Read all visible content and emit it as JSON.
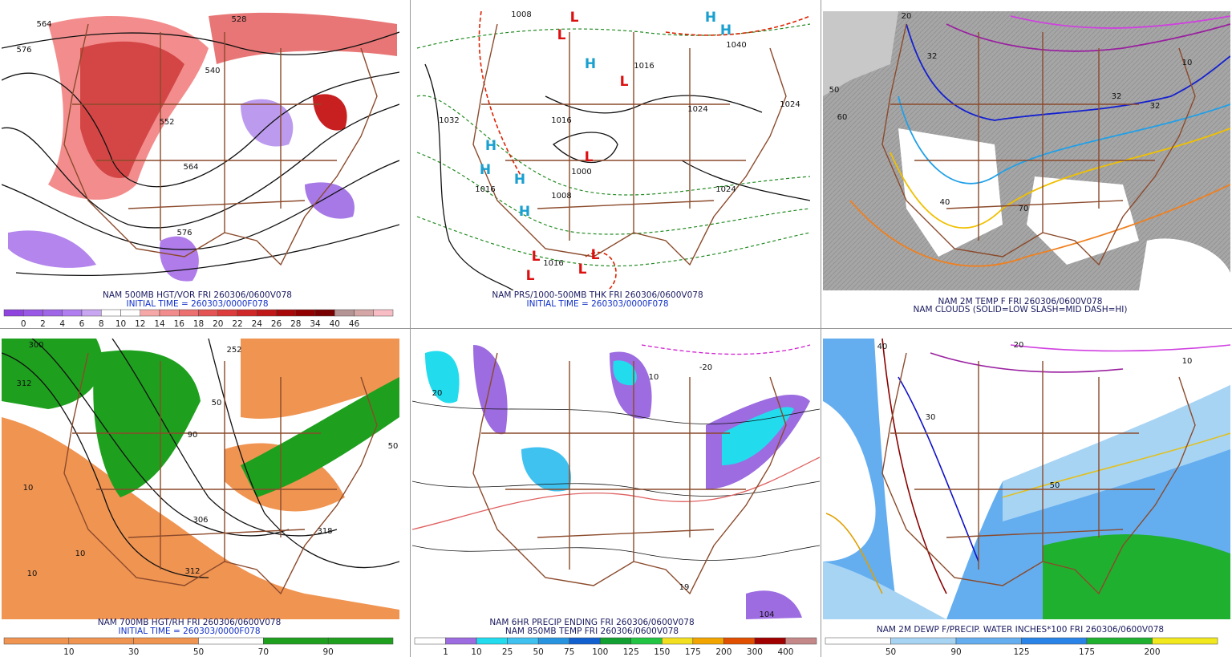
{
  "panels": [
    {
      "caption": [
        "NAM 500MB HGT/VOR FRI 260306/0600V078",
        "INITIAL TIME = 260303/0000F078"
      ],
      "colorbar": {
        "colors": [
          "#8f44e0",
          "#9a58e6",
          "#a066e8",
          "#b07ef0",
          "#c8a6f2",
          "#ffffff",
          "#ffffff",
          "#f6a8a8",
          "#f28c8c",
          "#ec7070",
          "#e45454",
          "#dc3c3c",
          "#d02828",
          "#c01818",
          "#a80808",
          "#900000",
          "#780000",
          "#b49494",
          "#d4a6a6",
          "#f8bcc4"
        ],
        "labels": [
          0,
          2,
          4,
          6,
          8,
          10,
          12,
          14,
          16,
          18,
          20,
          22,
          24,
          26,
          28,
          34,
          40,
          46
        ]
      },
      "map_labels": [
        "564",
        "576",
        "528",
        "540",
        "552",
        "564",
        "576"
      ]
    },
    {
      "caption": [
        "NAM PRS/1000-500MB THK FRI 260306/0600V078",
        "INITIAL TIME = 260303/0000F078"
      ],
      "map_labels": [
        "1008",
        "1032",
        "1024",
        "1016",
        "1000",
        "1008",
        "1016",
        "1024",
        "1016",
        "1024",
        "1040",
        "1016"
      ],
      "highs": [
        "H",
        "H",
        "H",
        "H",
        "H",
        "H",
        "H"
      ],
      "lows": [
        "L",
        "L",
        "L",
        "L",
        "L",
        "L",
        "L",
        "L"
      ]
    },
    {
      "caption": [
        "NAM 2M TEMP F FRI 260306/0600V078",
        "NAM CLOUDS (SOLID=LOW SLASH=MID DASH=HI)"
      ],
      "map_labels": [
        "32",
        "32",
        "40",
        "50",
        "60",
        "70",
        "32",
        "20",
        "10"
      ]
    },
    {
      "caption": [
        "NAM 700MB HGT/RH FRI 260306/0600V078",
        "INITIAL TIME = 260303/0000F078"
      ],
      "colorbar": {
        "colors": [
          "#f09452",
          "#f09452",
          "#f09452",
          "#ffffff",
          "#1ea01e",
          "#1ea01e"
        ],
        "labels": [
          10,
          30,
          50,
          70,
          90
        ]
      },
      "map_labels": [
        "300",
        "312",
        "252",
        "10",
        "50",
        "90",
        "10",
        "306",
        "318",
        "312",
        "50",
        "10"
      ]
    },
    {
      "caption": [
        "NAM 6HR PRECIP ENDING FRI 260306/0600V078",
        "NAM 850MB TEMP FRI 260306/0600V078"
      ],
      "colorbar": {
        "colors": [
          "#ffffff",
          "#9c6ce0",
          "#22dcee",
          "#40c2f0",
          "#2894e0",
          "#1260d0",
          "#12a032",
          "#22c444",
          "#f2e020",
          "#f2a400",
          "#e05000",
          "#a00000",
          "#c48888"
        ],
        "labels": [
          1,
          10,
          25,
          50,
          75,
          100,
          125,
          150,
          175,
          200,
          300,
          400
        ]
      },
      "map_labels": [
        "20",
        "10",
        "-20",
        "19",
        "104"
      ]
    },
    {
      "caption": [
        "NAM 2M DEWP F/PRECIP. WATER INCHES*100 FRI 260306/0600V078"
      ],
      "colorbar": {
        "colors": [
          "#ffffff",
          "#a8d4f4",
          "#64aef0",
          "#2a84e8",
          "#20b030",
          "#f2e81e"
        ],
        "labels": [
          50,
          90,
          125,
          175,
          200
        ]
      },
      "map_labels": [
        "50",
        "40",
        "30",
        "20",
        "10"
      ]
    }
  ]
}
